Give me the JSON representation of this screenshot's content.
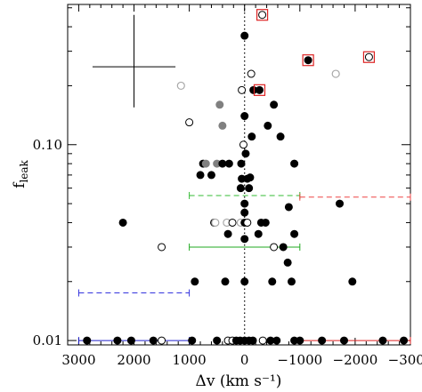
{
  "chart_data": {
    "type": "scatter",
    "xlabel": "Δv (km s⁻¹)",
    "ylabel_main": "f",
    "ylabel_sub": "leak",
    "xlim": [
      3200,
      -3000
    ],
    "ylim": [
      0.0095,
      0.52
    ],
    "yscale": "log",
    "x_ticks": [
      3000,
      2000,
      1000,
      0,
      -1000,
      -2000,
      -3000
    ],
    "x_tick_labels": [
      "3000",
      "2000",
      "1000",
      "0",
      "−1000",
      "−2000",
      "−3000"
    ],
    "y_ticks": [
      0.01,
      0.1
    ],
    "y_tick_labels": [
      "0.01",
      "0.10"
    ],
    "vertical_reference_line_x": 0,
    "representative_error": {
      "x": 2000,
      "y": 0.25,
      "x_err": 750,
      "y_lo": 0.155,
      "y_hi": 0.46
    },
    "colors": {
      "black": "#000000",
      "gray": "#808080",
      "light_gray": "#a8a8a8",
      "red": "#dd2222",
      "blue": "#2222cc",
      "green": "#22aa22",
      "green_dashed": "#33bb33",
      "red_dashed": "#ee4444",
      "blue_dashed": "#3333dd"
    },
    "binned_ranges": [
      {
        "series": "blue-solid",
        "x_from": 3000,
        "x_to": 1000,
        "y": 0.01,
        "color": "#2222cc",
        "dashed": false
      },
      {
        "series": "blue-dashed",
        "x_from": 3000,
        "x_to": 1000,
        "y": 0.0175,
        "color": "#3333dd",
        "dashed": true
      },
      {
        "series": "green-solid",
        "x_from": 1000,
        "x_to": -1000,
        "y": 0.03,
        "color": "#22aa22",
        "dashed": false
      },
      {
        "series": "green-dashed",
        "x_from": 1000,
        "x_to": -1000,
        "y": 0.055,
        "color": "#33bb33",
        "dashed": true
      },
      {
        "series": "red-solid",
        "x_from": -1000,
        "x_to": -3000,
        "y": 0.01,
        "color": "#dd2222",
        "dashed": false
      },
      {
        "series": "red-dashed",
        "x_from": -1000,
        "x_to": -3000,
        "y": 0.054,
        "color": "#ee4444",
        "dashed": true
      }
    ],
    "points": [
      {
        "x": 2850,
        "y": 0.01,
        "style": "filled"
      },
      {
        "x": 2300,
        "y": 0.01,
        "style": "filled"
      },
      {
        "x": 2050,
        "y": 0.01,
        "style": "filled"
      },
      {
        "x": 1500,
        "y": 0.01,
        "style": "open"
      },
      {
        "x": 1650,
        "y": 0.01,
        "style": "filled"
      },
      {
        "x": 950,
        "y": 0.01,
        "style": "filled"
      },
      {
        "x": 500,
        "y": 0.01,
        "style": "filled"
      },
      {
        "x": 300,
        "y": 0.01,
        "style": "open"
      },
      {
        "x": 220,
        "y": 0.01,
        "style": "open"
      },
      {
        "x": 150,
        "y": 0.01,
        "style": "filled"
      },
      {
        "x": 80,
        "y": 0.01,
        "style": "filled"
      },
      {
        "x": 0,
        "y": 0.01,
        "style": "filled"
      },
      {
        "x": -80,
        "y": 0.01,
        "style": "filled"
      },
      {
        "x": -150,
        "y": 0.01,
        "style": "filled"
      },
      {
        "x": -330,
        "y": 0.01,
        "style": "open"
      },
      {
        "x": -470,
        "y": 0.01,
        "style": "filled"
      },
      {
        "x": -580,
        "y": 0.01,
        "style": "filled"
      },
      {
        "x": -900,
        "y": 0.01,
        "style": "filled"
      },
      {
        "x": -1000,
        "y": 0.01,
        "style": "filled"
      },
      {
        "x": -1400,
        "y": 0.01,
        "style": "filled"
      },
      {
        "x": -1800,
        "y": 0.01,
        "style": "filled"
      },
      {
        "x": -2500,
        "y": 0.01,
        "style": "filled"
      },
      {
        "x": -2880,
        "y": 0.01,
        "style": "filled"
      },
      {
        "x": 2200,
        "y": 0.04,
        "style": "filled"
      },
      {
        "x": 1500,
        "y": 0.03,
        "style": "open"
      },
      {
        "x": 900,
        "y": 0.02,
        "style": "filled"
      },
      {
        "x": 350,
        "y": 0.02,
        "style": "filled"
      },
      {
        "x": 0,
        "y": 0.02,
        "style": "filled"
      },
      {
        "x": -500,
        "y": 0.02,
        "style": "filled"
      },
      {
        "x": -850,
        "y": 0.02,
        "style": "filled"
      },
      {
        "x": -1950,
        "y": 0.02,
        "style": "filled"
      },
      {
        "x": -530,
        "y": 0.03,
        "style": "open"
      },
      {
        "x": -700,
        "y": 0.03,
        "style": "filled"
      },
      {
        "x": -780,
        "y": 0.025,
        "style": "filled"
      },
      {
        "x": 300,
        "y": 0.035,
        "style": "filled"
      },
      {
        "x": 0,
        "y": 0.033,
        "style": "filled"
      },
      {
        "x": -250,
        "y": 0.035,
        "style": "filled"
      },
      {
        "x": -900,
        "y": 0.035,
        "style": "filled"
      },
      {
        "x": 550,
        "y": 0.04,
        "style": "filled"
      },
      {
        "x": 530,
        "y": 0.04,
        "style": "open-light"
      },
      {
        "x": 320,
        "y": 0.04,
        "style": "open-light"
      },
      {
        "x": 220,
        "y": 0.04,
        "style": "open"
      },
      {
        "x": 70,
        "y": 0.04,
        "style": "open-light"
      },
      {
        "x": 0,
        "y": 0.04,
        "style": "filled"
      },
      {
        "x": -50,
        "y": 0.04,
        "style": "open"
      },
      {
        "x": -300,
        "y": 0.04,
        "style": "filled"
      },
      {
        "x": -380,
        "y": 0.04,
        "style": "filled"
      },
      {
        "x": 0,
        "y": 0.045,
        "style": "filled"
      },
      {
        "x": -800,
        "y": 0.048,
        "style": "filled"
      },
      {
        "x": -1720,
        "y": 0.05,
        "style": "filled"
      },
      {
        "x": 0,
        "y": 0.05,
        "style": "filled"
      },
      {
        "x": 70,
        "y": 0.06,
        "style": "filled"
      },
      {
        "x": -80,
        "y": 0.06,
        "style": "filled"
      },
      {
        "x": 800,
        "y": 0.07,
        "style": "filled"
      },
      {
        "x": 600,
        "y": 0.07,
        "style": "filled"
      },
      {
        "x": 50,
        "y": 0.067,
        "style": "filled"
      },
      {
        "x": -50,
        "y": 0.067,
        "style": "filled"
      },
      {
        "x": -100,
        "y": 0.068,
        "style": "filled"
      },
      {
        "x": 750,
        "y": 0.08,
        "style": "filled"
      },
      {
        "x": 700,
        "y": 0.08,
        "style": "gray"
      },
      {
        "x": 500,
        "y": 0.08,
        "style": "gray"
      },
      {
        "x": 400,
        "y": 0.08,
        "style": "filled"
      },
      {
        "x": 280,
        "y": 0.08,
        "style": "filled"
      },
      {
        "x": 60,
        "y": 0.08,
        "style": "filled"
      },
      {
        "x": -900,
        "y": 0.08,
        "style": "filled"
      },
      {
        "x": -20,
        "y": 0.09,
        "style": "filled"
      },
      {
        "x": 20,
        "y": 0.1,
        "style": "open"
      },
      {
        "x": -650,
        "y": 0.11,
        "style": "filled"
      },
      {
        "x": -130,
        "y": 0.11,
        "style": "filled"
      },
      {
        "x": -420,
        "y": 0.125,
        "style": "filled"
      },
      {
        "x": 1000,
        "y": 0.13,
        "style": "open"
      },
      {
        "x": 400,
        "y": 0.125,
        "style": "gray"
      },
      {
        "x": 0,
        "y": 0.14,
        "style": "filled"
      },
      {
        "x": 450,
        "y": 0.16,
        "style": "gray"
      },
      {
        "x": -530,
        "y": 0.16,
        "style": "filled"
      },
      {
        "x": -160,
        "y": 0.19,
        "style": "filled"
      },
      {
        "x": 1150,
        "y": 0.2,
        "style": "open-light"
      },
      {
        "x": 50,
        "y": 0.19,
        "style": "open"
      },
      {
        "x": -270,
        "y": 0.19,
        "style": "filled-boxed"
      },
      {
        "x": -120,
        "y": 0.23,
        "style": "open"
      },
      {
        "x": -1650,
        "y": 0.23,
        "style": "open-light"
      },
      {
        "x": -1150,
        "y": 0.27,
        "style": "filled-boxed"
      },
      {
        "x": -2250,
        "y": 0.28,
        "style": "open-boxed"
      },
      {
        "x": 0,
        "y": 0.36,
        "style": "filled"
      },
      {
        "x": -320,
        "y": 0.46,
        "style": "open-boxed"
      }
    ]
  }
}
